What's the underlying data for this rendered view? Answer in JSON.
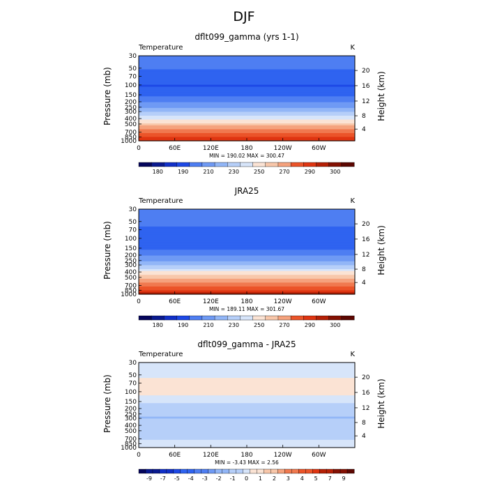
{
  "page": {
    "title": "DJF"
  },
  "chart_data": [
    {
      "type": "heatmap",
      "title": "dflt099_gamma (yrs 1-1)",
      "left_label": "Temperature",
      "right_label": "K",
      "xlabel": "",
      "ylabel": "Pressure (mb)",
      "y2label": "Height (km)",
      "x_ticks": [
        "0",
        "60E",
        "120E",
        "180",
        "120W",
        "60W"
      ],
      "y_ticks": [
        "30",
        "50",
        "70",
        "100",
        "150",
        "200",
        "250",
        "300",
        "400",
        "500",
        "700",
        "850",
        "1000"
      ],
      "y2_ticks": [
        "20",
        "16",
        "12",
        "8",
        "4"
      ],
      "stats": "MIN = 190.02   MAX = 300.47",
      "levels": [
        "180",
        "190",
        "210",
        "230",
        "250",
        "270",
        "290",
        "300"
      ],
      "colors": [
        "#05065c",
        "#0a1a8f",
        "#1130c8",
        "#1d48e6",
        "#2f63f0",
        "#4e7ef2",
        "#6f9af4",
        "#92b6f7",
        "#b6cff9",
        "#d7e5fa",
        "#fbe3d4",
        "#f8c7aa",
        "#f5a27d",
        "#f0794f",
        "#eb5429",
        "#df3511",
        "#b52006",
        "#841103",
        "#5c0702"
      ],
      "profile": [
        [
          30,
          211
        ],
        [
          50,
          206
        ],
        [
          70,
          201
        ],
        [
          100,
          197
        ],
        [
          150,
          203
        ],
        [
          200,
          211
        ],
        [
          250,
          219
        ],
        [
          300,
          228
        ],
        [
          400,
          243
        ],
        [
          500,
          255
        ],
        [
          700,
          273
        ],
        [
          850,
          283
        ],
        [
          1000,
          292
        ]
      ],
      "min": 190.02,
      "max": 300.47
    },
    {
      "type": "heatmap",
      "title": "JRA25",
      "left_label": "Temperature",
      "right_label": "K",
      "xlabel": "",
      "ylabel": "Pressure (mb)",
      "y2label": "Height (km)",
      "x_ticks": [
        "0",
        "60E",
        "120E",
        "180",
        "120W",
        "60W"
      ],
      "y_ticks": [
        "30",
        "50",
        "70",
        "100",
        "150",
        "200",
        "250",
        "300",
        "400",
        "500",
        "700",
        "850",
        "1000"
      ],
      "y2_ticks": [
        "20",
        "16",
        "12",
        "8",
        "4"
      ],
      "stats": "MIN = 189.11   MAX = 301.67",
      "levels": [
        "180",
        "190",
        "210",
        "230",
        "250",
        "270",
        "290",
        "300"
      ],
      "colors": [
        "#05065c",
        "#0a1a8f",
        "#1130c8",
        "#1d48e6",
        "#2f63f0",
        "#4e7ef2",
        "#6f9af4",
        "#92b6f7",
        "#b6cff9",
        "#d7e5fa",
        "#fbe3d4",
        "#f8c7aa",
        "#f5a27d",
        "#f0794f",
        "#eb5429",
        "#df3511",
        "#b52006",
        "#841103",
        "#5c0702"
      ],
      "profile": [
        [
          30,
          212
        ],
        [
          50,
          208
        ],
        [
          70,
          203
        ],
        [
          100,
          199
        ],
        [
          150,
          204
        ],
        [
          200,
          212
        ],
        [
          250,
          220
        ],
        [
          300,
          229
        ],
        [
          400,
          244
        ],
        [
          500,
          256
        ],
        [
          700,
          274
        ],
        [
          850,
          284
        ],
        [
          1000,
          293
        ]
      ],
      "min": 189.11,
      "max": 301.67
    },
    {
      "type": "heatmap",
      "title": "dflt099_gamma - JRA25",
      "left_label": "Temperature",
      "right_label": "K",
      "xlabel": "",
      "ylabel": "Pressure (mb)",
      "y2label": "Height (km)",
      "x_ticks": [
        "0",
        "60E",
        "120E",
        "180",
        "120W",
        "60W"
      ],
      "y_ticks": [
        "30",
        "50",
        "70",
        "100",
        "150",
        "200",
        "250",
        "300",
        "400",
        "500",
        "700",
        "850",
        "1000"
      ],
      "y2_ticks": [
        "20",
        "16",
        "12",
        "8",
        "4"
      ],
      "stats": "MIN =  -3.43   MAX =    2.56",
      "levels": [
        "-9",
        "-7",
        "-5",
        "-4",
        "-3",
        "-2",
        "-1",
        "0",
        "1",
        "2",
        "3",
        "4",
        "5",
        "7",
        "9"
      ],
      "colors": [
        "#05065c",
        "#0a1a8f",
        "#1130c8",
        "#1d48e6",
        "#2f63f0",
        "#4e7ef2",
        "#6f9af4",
        "#92b6f7",
        "#b6cff9",
        "#d7e5fa",
        "#fbe3d4",
        "#f8c7aa",
        "#f5a27d",
        "#f0794f",
        "#eb5429",
        "#df3511",
        "#b52006",
        "#841103",
        "#5c0702"
      ],
      "profile": [
        [
          30,
          0.3
        ],
        [
          50,
          0.4
        ],
        [
          70,
          0.8
        ],
        [
          100,
          1.0
        ],
        [
          150,
          -0.5
        ],
        [
          200,
          -1.3
        ],
        [
          250,
          -1.6
        ],
        [
          300,
          -1.8
        ],
        [
          400,
          -1.4
        ],
        [
          500,
          -1.1
        ],
        [
          700,
          -0.6
        ],
        [
          850,
          -0.4
        ],
        [
          1000,
          0.2
        ]
      ],
      "min": -3.43,
      "max": 2.56
    }
  ]
}
